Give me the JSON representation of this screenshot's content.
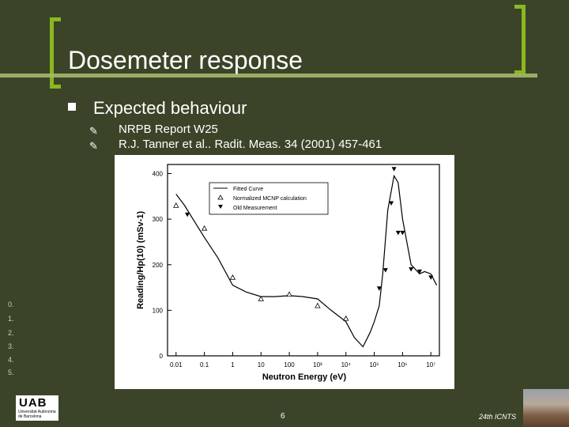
{
  "slide": {
    "title": "Dosemeter response",
    "bullet": "Expected behaviour",
    "sub_items": [
      "NRPB Report W25",
      "R.J. Tanner et al.. Radit. Meas. 34 (2001) 457-461"
    ],
    "side_numbers": [
      "0.",
      "1.",
      "2.",
      "3.",
      "4.",
      "5."
    ],
    "page_number": "6",
    "conference": "24th ICNTS",
    "logo_text": "UAB",
    "logo_subtext": "Universitat Autònoma de Barcelona"
  },
  "chart_data": {
    "type": "line",
    "xlabel": "Neutron Energy (eV)",
    "ylabel": "Reading/Hp(10) (mSv-1)",
    "xscale": "log",
    "xlim": [
      0.005,
      20000000
    ],
    "ylim": [
      0,
      420
    ],
    "xtick_labels": [
      "0.01",
      "0.1",
      "1",
      "10",
      "100",
      "10³",
      "10⁴",
      "10⁵",
      "10⁶",
      "10⁷"
    ],
    "ytick_labels": [
      "0",
      "100",
      "200",
      "300",
      "400"
    ],
    "legend": [
      "Fitted Curve",
      "Normalized MCNP calculation",
      "Old Measurement"
    ],
    "legend_position": "top-center",
    "series": [
      {
        "name": "Fitted Curve",
        "style": "line",
        "x": [
          0.01,
          0.02,
          0.05,
          0.1,
          0.3,
          1,
          3,
          10,
          30,
          100,
          300,
          1000,
          3000,
          10000,
          20000,
          40000,
          70000,
          100000,
          150000,
          200000,
          300000,
          500000,
          700000,
          1000000,
          2000000,
          4000000,
          6000000,
          10000000,
          16000000
        ],
        "y": [
          355,
          330,
          290,
          260,
          215,
          155,
          140,
          130,
          130,
          132,
          130,
          125,
          100,
          75,
          40,
          20,
          50,
          75,
          110,
          180,
          320,
          395,
          380,
          300,
          200,
          180,
          185,
          180,
          155
        ]
      },
      {
        "name": "Normalized MCNP calculation",
        "style": "triangle-up",
        "x": [
          0.01,
          0.1,
          1,
          10,
          100,
          1000,
          10000
        ],
        "y": [
          330,
          280,
          172,
          125,
          135,
          110,
          82
        ]
      },
      {
        "name": "Old Measurement",
        "style": "triangle-down",
        "x": [
          0.025,
          150000,
          250000,
          400000,
          500000,
          700000,
          1000000,
          2000000,
          4000000,
          10000000
        ],
        "y": [
          310,
          148,
          188,
          335,
          410,
          270,
          270,
          190,
          185,
          172
        ]
      }
    ]
  }
}
